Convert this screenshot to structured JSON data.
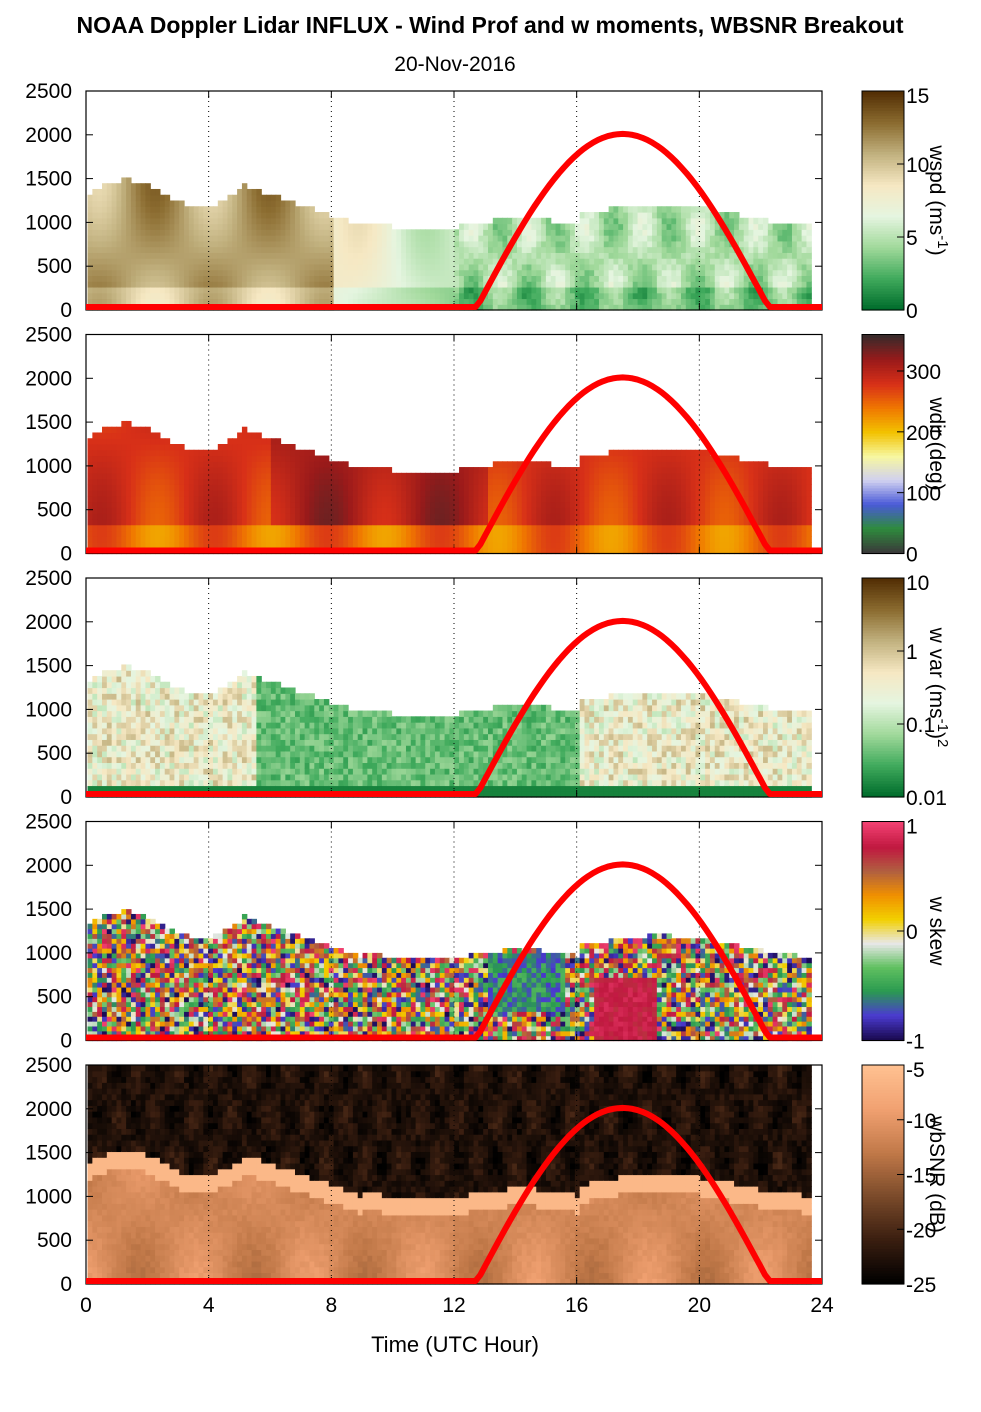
{
  "title": "NOAA Doppler Lidar INFLUX - Wind Prof and w moments, WBSNR Breakout",
  "subtitle": "20-Nov-2016",
  "xlabel": "Time (UTC Hour)",
  "chart_data": {
    "type": "heatmap",
    "x_range": [
      0,
      24
    ],
    "x_ticks": [
      "0",
      "4",
      "8",
      "12",
      "16",
      "20",
      "24"
    ],
    "y_range": [
      0,
      2500
    ],
    "y_ticks": [
      "0",
      "500",
      "1000",
      "1500",
      "2000",
      "2500"
    ],
    "grid": "vertical dotted lines at 4-hour intervals",
    "overlay_curve": {
      "color": "#ff0000",
      "description_points": {
        "x": [
          0,
          12.7,
          13.5,
          14.5,
          15.5,
          16.5,
          17.5,
          18.5,
          19.5,
          20.5,
          21.5,
          22.3,
          24
        ],
        "y": [
          0,
          0,
          650,
          1290,
          1710,
          1940,
          2010,
          1940,
          1710,
          1290,
          650,
          0,
          0
        ]
      }
    },
    "panels": [
      {
        "id": "wspd",
        "colorbar_label": "wspd (ms",
        "colorbar_label_sup": "-1",
        "colorbar_label_end": ")",
        "colorbar_ticks": [
          "0",
          "5",
          "10",
          "15"
        ],
        "colorbar_range": [
          0,
          15
        ],
        "colormap": [
          "#006d2c",
          "#41ab5d",
          "#a1d99b",
          "#e5f5e0",
          "#f6e8c3",
          "#c2b280",
          "#8c6d31",
          "#543005"
        ]
      },
      {
        "id": "wdir",
        "colorbar_label": "wdir (deg)",
        "colorbar_ticks": [
          "0",
          "100",
          "200",
          "300"
        ],
        "colorbar_range": [
          0,
          360
        ],
        "colormap": [
          "#3a3a3a",
          "#2e8b3d",
          "#4a5ad8",
          "#d0d0f0",
          "#f7f7a0",
          "#f2c200",
          "#f07800",
          "#d83018",
          "#9a1a1a",
          "#3a2a2a"
        ]
      },
      {
        "id": "wvar",
        "colorbar_label": "w var (ms",
        "colorbar_label_sup": "-1",
        "colorbar_label_end": ")",
        "colorbar_label_sup2": "2",
        "colorbar_ticks": [
          "0.01",
          "0.1",
          "1",
          "10"
        ],
        "colorbar_range": [
          0.01,
          10
        ],
        "colorbar_scale": "log",
        "colormap": [
          "#006d2c",
          "#41ab5d",
          "#a1d99b",
          "#e5f5e0",
          "#f6e8c3",
          "#c2b280",
          "#8c6d31",
          "#543005"
        ]
      },
      {
        "id": "wskew",
        "colorbar_label": "w skew",
        "colorbar_ticks": [
          "-1",
          "0",
          "1"
        ],
        "colorbar_range": [
          -1,
          1
        ],
        "colormap": [
          "#1a0a50",
          "#4b3bd0",
          "#2a9a50",
          "#60c060",
          "#e8e8e8",
          "#f2d000",
          "#f09000",
          "#b06040",
          "#c01840",
          "#f04070"
        ]
      },
      {
        "id": "wbsnr",
        "colorbar_label": "wbSNR (dB)",
        "colorbar_ticks": [
          "-25",
          "-20",
          "-15",
          "-10",
          "-5"
        ],
        "colorbar_range": [
          -25,
          -5
        ],
        "colormap": [
          "#000000",
          "#3a1e10",
          "#7a4a2a",
          "#c07848",
          "#f0a070",
          "#ffc090"
        ]
      }
    ]
  }
}
